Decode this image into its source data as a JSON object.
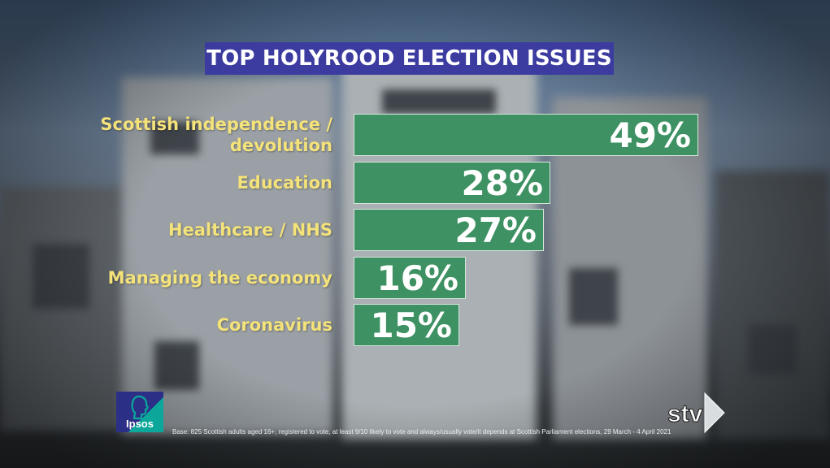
{
  "title": "TOP HOLYROOD ELECTION ISSUES",
  "chart_data": {
    "type": "bar",
    "orientation": "horizontal",
    "title": "TOP HOLYROOD ELECTION ISSUES",
    "categories": [
      "Scottish independence /\ndevolution",
      "Education",
      "Healthcare / NHS",
      "Managing the economy",
      "Coronavirus"
    ],
    "values": [
      49,
      28,
      27,
      16,
      15
    ],
    "value_labels": [
      "49%",
      "28%",
      "27%",
      "16%",
      "15%"
    ],
    "unit": "%",
    "xlim": [
      0,
      49
    ],
    "grid": false,
    "legend": "none",
    "bar_color": "#3d9162",
    "label_color": "#f4e27a"
  },
  "footnote": "Base: 825 Scottish adults aged 16+, registered to vote, at least 9/10 likely to vote and always/usually vote/it depends at Scottish Parliament elections, 29 March - 4 April 2021",
  "logos": {
    "ipsos": "Ipsos",
    "stv": "stv"
  },
  "colors": {
    "title_bg": "#3b3ba0",
    "ipsos_blue": "#2c2f86",
    "ipsos_teal": "#0aa79a"
  }
}
